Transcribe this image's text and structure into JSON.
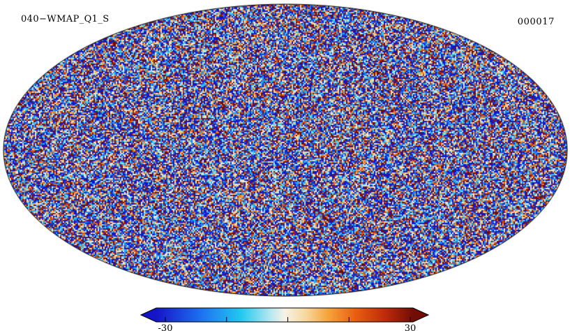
{
  "header": {
    "title": "040−WMAP_Q1_S",
    "frame_id": "000017"
  },
  "chart_data": {
    "type": "heatmap",
    "projection": "mollweide",
    "title": "040−WMAP_Q1_S",
    "frame": "000017",
    "description": "Full-sky Mollweide projection map of per-pixel noise (WMAP Q1 band simulation), speckled blue/red Gaussian noise filling the ellipse",
    "value_range": [
      -30,
      30
    ],
    "colorbar": {
      "min_label": "-30",
      "max_label": "30",
      "tick_values": [
        -30,
        -15,
        0,
        15,
        30
      ],
      "orientation": "horizontal",
      "arrow_ends": true
    },
    "colormap": [
      {
        "t": 0.0,
        "color": "#1515c8"
      },
      {
        "t": 0.17,
        "color": "#1e6ef0"
      },
      {
        "t": 0.33,
        "color": "#22c8f0"
      },
      {
        "t": 0.45,
        "color": "#bce9f0"
      },
      {
        "t": 0.5,
        "color": "#f7f2e4"
      },
      {
        "t": 0.58,
        "color": "#f7d9a0"
      },
      {
        "t": 0.67,
        "color": "#f5a33b"
      },
      {
        "t": 0.78,
        "color": "#e85c10"
      },
      {
        "t": 0.89,
        "color": "#bf2b0a"
      },
      {
        "t": 1.0,
        "color": "#720d05"
      }
    ],
    "noise": {
      "mean": -6,
      "sigma": 28,
      "cell": 2
    }
  }
}
